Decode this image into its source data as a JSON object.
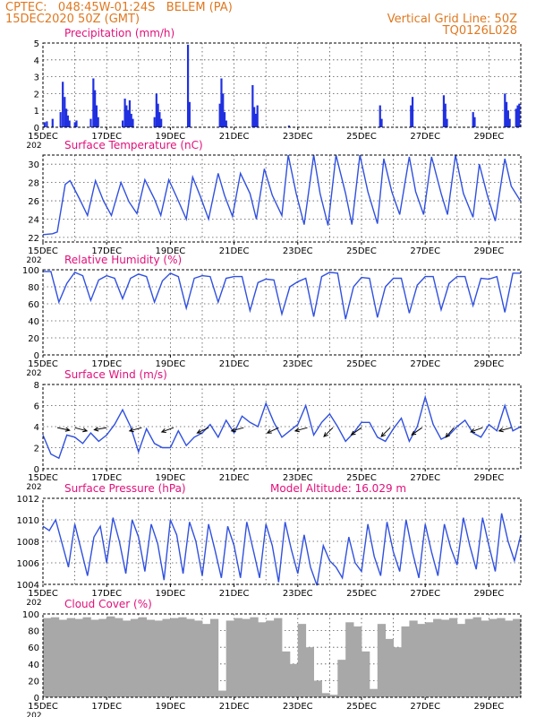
{
  "header": {
    "station": "CPTEC:   048:45W-01:24S   BELEM (PA)",
    "run": "15DEC2020 50Z (GMT)",
    "grid_note": "Vertical Grid Line: 50Z",
    "code": "TQ0126L028"
  },
  "model_altitude": "Model Altitude: 16.029  m",
  "x_axis": {
    "labels": [
      "15DEC",
      "17DEC",
      "19DEC",
      "21DEC",
      "23DEC",
      "25DEC",
      "27DEC",
      "29DEC"
    ],
    "label_days": [
      0,
      2,
      4,
      6,
      8,
      10,
      12,
      14
    ],
    "range_days": [
      0,
      15
    ],
    "year_stub": "202"
  },
  "colors": {
    "line": "#3050e0",
    "bar": "#2030e0",
    "cloud": "#a8a8a8",
    "title": "#e0107a",
    "header": "#e07820",
    "grid": "#555555"
  },
  "chart_data": [
    {
      "type": "bar",
      "title": "Precipitation (mm/h)",
      "ylim": [
        0,
        5
      ],
      "yticks": [
        "0",
        "1",
        "2",
        "3",
        "4",
        "5"
      ],
      "bars": [
        {
          "t": 0.05,
          "v": 0.3
        },
        {
          "t": 0.12,
          "v": 0.35
        },
        {
          "t": 0.3,
          "v": 0.5
        },
        {
          "t": 0.55,
          "v": 0.9
        },
        {
          "t": 0.62,
          "v": 2.7
        },
        {
          "t": 0.68,
          "v": 1.8
        },
        {
          "t": 0.73,
          "v": 1.1
        },
        {
          "t": 0.78,
          "v": 0.7
        },
        {
          "t": 0.83,
          "v": 0.4
        },
        {
          "t": 1.0,
          "v": 0.3
        },
        {
          "t": 1.05,
          "v": 0.4
        },
        {
          "t": 1.5,
          "v": 0.5
        },
        {
          "t": 1.58,
          "v": 2.9
        },
        {
          "t": 1.63,
          "v": 2.2
        },
        {
          "t": 1.68,
          "v": 1.3
        },
        {
          "t": 1.73,
          "v": 0.6
        },
        {
          "t": 2.5,
          "v": 0.4
        },
        {
          "t": 2.57,
          "v": 1.7
        },
        {
          "t": 2.62,
          "v": 1.3
        },
        {
          "t": 2.67,
          "v": 1.0
        },
        {
          "t": 2.72,
          "v": 1.6
        },
        {
          "t": 2.77,
          "v": 0.8
        },
        {
          "t": 2.82,
          "v": 0.5
        },
        {
          "t": 3.5,
          "v": 0.6
        },
        {
          "t": 3.56,
          "v": 2.0
        },
        {
          "t": 3.61,
          "v": 1.4
        },
        {
          "t": 3.66,
          "v": 0.9
        },
        {
          "t": 3.71,
          "v": 0.5
        },
        {
          "t": 4.55,
          "v": 4.9
        },
        {
          "t": 4.6,
          "v": 1.5
        },
        {
          "t": 5.55,
          "v": 1.4
        },
        {
          "t": 5.6,
          "v": 2.9
        },
        {
          "t": 5.65,
          "v": 2.0
        },
        {
          "t": 5.7,
          "v": 0.9
        },
        {
          "t": 5.75,
          "v": 0.4
        },
        {
          "t": 6.58,
          "v": 2.5
        },
        {
          "t": 6.63,
          "v": 1.2
        },
        {
          "t": 6.68,
          "v": 0.8
        },
        {
          "t": 6.73,
          "v": 1.3
        },
        {
          "t": 7.72,
          "v": 0.1
        },
        {
          "t": 10.58,
          "v": 1.3
        },
        {
          "t": 10.63,
          "v": 0.5
        },
        {
          "t": 11.55,
          "v": 1.3
        },
        {
          "t": 11.6,
          "v": 1.8
        },
        {
          "t": 12.58,
          "v": 1.9
        },
        {
          "t": 12.63,
          "v": 1.4
        },
        {
          "t": 12.68,
          "v": 0.5
        },
        {
          "t": 13.5,
          "v": 0.9
        },
        {
          "t": 13.55,
          "v": 0.6
        },
        {
          "t": 14.5,
          "v": 2.0
        },
        {
          "t": 14.55,
          "v": 1.5
        },
        {
          "t": 14.6,
          "v": 1.0
        },
        {
          "t": 14.65,
          "v": 0.5
        },
        {
          "t": 14.85,
          "v": 1.1
        },
        {
          "t": 14.9,
          "v": 1.3
        },
        {
          "t": 14.95,
          "v": 1.4
        }
      ]
    },
    {
      "type": "line",
      "title": "Surface Temperature (nC)",
      "ylim": [
        21.5,
        31
      ],
      "yticks": [
        "22",
        "24",
        "26",
        "28",
        "30"
      ],
      "x": [
        0,
        0.3,
        0.45,
        0.7,
        0.85,
        1.15,
        1.4,
        1.65,
        1.9,
        2.15,
        2.45,
        2.7,
        2.95,
        3.2,
        3.5,
        3.7,
        3.95,
        4.2,
        4.5,
        4.7,
        4.95,
        5.2,
        5.5,
        5.7,
        5.95,
        6.2,
        6.5,
        6.7,
        6.95,
        7.2,
        7.5,
        7.7,
        7.95,
        8.2,
        8.5,
        8.7,
        8.95,
        9.2,
        9.5,
        9.7,
        9.95,
        10.2,
        10.5,
        10.7,
        10.95,
        11.2,
        11.5,
        11.7,
        11.95,
        12.2,
        12.5,
        12.7,
        12.95,
        13.2,
        13.5,
        13.7,
        13.95,
        14.2,
        14.5,
        14.7,
        14.95,
        15.0
      ],
      "y": [
        22.3,
        22.4,
        22.6,
        27.8,
        28.2,
        26.2,
        24.4,
        28.2,
        26.0,
        24.4,
        28.0,
        25.9,
        24.6,
        28.3,
        26.2,
        24.4,
        28.3,
        26.4,
        24.0,
        28.6,
        26.4,
        24.0,
        29.0,
        26.6,
        24.3,
        29.0,
        26.8,
        24.0,
        29.5,
        26.6,
        24.4,
        31.0,
        26.8,
        23.4,
        31.0,
        26.8,
        23.3,
        31.0,
        26.8,
        23.4,
        31.0,
        27.0,
        23.5,
        30.6,
        27.0,
        24.5,
        30.8,
        27.0,
        24.5,
        30.8,
        26.8,
        24.5,
        31.0,
        26.8,
        24.2,
        30.0,
        26.6,
        23.8,
        30.6,
        27.6,
        26.2,
        26.0
      ]
    },
    {
      "type": "line",
      "title": "Relative Humidity (%)",
      "ylim": [
        0,
        100
      ],
      "yticks": [
        "0",
        "20",
        "40",
        "60",
        "80",
        "100"
      ],
      "x": [
        0,
        0.25,
        0.5,
        0.75,
        1.0,
        1.25,
        1.5,
        1.75,
        2.0,
        2.25,
        2.5,
        2.75,
        3.0,
        3.25,
        3.5,
        3.75,
        4.0,
        4.25,
        4.5,
        4.75,
        5.0,
        5.25,
        5.5,
        5.75,
        6.0,
        6.25,
        6.5,
        6.75,
        7.0,
        7.25,
        7.5,
        7.75,
        8.0,
        8.25,
        8.5,
        8.75,
        9.0,
        9.25,
        9.5,
        9.75,
        10.0,
        10.25,
        10.5,
        10.75,
        11.0,
        11.25,
        11.5,
        11.75,
        12.0,
        12.25,
        12.5,
        12.75,
        13.0,
        13.25,
        13.5,
        13.75,
        14.0,
        14.25,
        14.5,
        14.75,
        15.0
      ],
      "y": [
        98,
        98,
        62,
        84,
        97,
        93,
        64,
        88,
        93,
        90,
        66,
        90,
        95,
        92,
        62,
        87,
        96,
        92,
        55,
        90,
        93,
        92,
        62,
        90,
        92,
        92,
        52,
        85,
        89,
        88,
        48,
        80,
        86,
        90,
        45,
        92,
        97,
        96,
        42,
        80,
        91,
        90,
        44,
        80,
        90,
        90,
        49,
        82,
        92,
        92,
        53,
        84,
        92,
        92,
        58,
        90,
        89,
        92,
        50,
        96,
        96
      ]
    },
    {
      "type": "line",
      "title": "Surface Wind (m/s)",
      "ylim": [
        0,
        8
      ],
      "yticks": [
        "0",
        "2",
        "4",
        "6",
        "8"
      ],
      "x": [
        0,
        0.25,
        0.5,
        0.75,
        1.0,
        1.25,
        1.5,
        1.75,
        2.0,
        2.25,
        2.5,
        2.75,
        3.0,
        3.25,
        3.5,
        3.75,
        4.0,
        4.25,
        4.5,
        4.75,
        5.0,
        5.25,
        5.5,
        5.75,
        6.0,
        6.25,
        6.5,
        6.75,
        7.0,
        7.25,
        7.5,
        7.75,
        8.0,
        8.25,
        8.5,
        8.75,
        9.0,
        9.25,
        9.5,
        9.75,
        10.0,
        10.25,
        10.5,
        10.75,
        11.0,
        11.25,
        11.5,
        11.75,
        12.0,
        12.25,
        12.5,
        12.75,
        13.0,
        13.25,
        13.5,
        13.75,
        14.0,
        14.25,
        14.5,
        14.75,
        15.0
      ],
      "y": [
        3.2,
        1.4,
        1.0,
        3.2,
        3.0,
        2.4,
        3.4,
        2.6,
        3.2,
        4.2,
        5.6,
        4.0,
        1.6,
        3.8,
        2.4,
        2.0,
        2.0,
        3.6,
        2.2,
        3.0,
        3.4,
        4.2,
        3.0,
        4.6,
        3.4,
        5.0,
        4.4,
        4.0,
        6.2,
        4.4,
        3.0,
        3.6,
        4.2,
        6.0,
        3.2,
        4.4,
        5.2,
        4.0,
        2.6,
        3.4,
        4.4,
        4.4,
        3.0,
        2.6,
        3.8,
        4.8,
        2.6,
        4.0,
        6.8,
        4.2,
        2.8,
        3.2,
        4.0,
        4.6,
        3.4,
        3.0,
        4.2,
        3.6,
        6.0,
        3.6,
        4.0
      ],
      "arrows": [
        {
          "t": 0.45,
          "dir": -12
        },
        {
          "t": 1.0,
          "dir": -15
        },
        {
          "t": 2.0,
          "dir": 190
        },
        {
          "t": 3.1,
          "dir": 195
        },
        {
          "t": 4.1,
          "dir": 200
        },
        {
          "t": 5.2,
          "dir": 205
        },
        {
          "t": 6.3,
          "dir": 195
        },
        {
          "t": 7.4,
          "dir": 205
        },
        {
          "t": 8.3,
          "dir": 195
        },
        {
          "t": 9.1,
          "dir": 225
        },
        {
          "t": 10.0,
          "dir": 215
        },
        {
          "t": 10.9,
          "dir": 225
        },
        {
          "t": 11.9,
          "dir": 215
        },
        {
          "t": 12.9,
          "dir": 230
        },
        {
          "t": 13.8,
          "dir": 200
        },
        {
          "t": 14.7,
          "dir": 195
        }
      ]
    },
    {
      "type": "line",
      "title": "Surface Pressure (hPa)",
      "ylim": [
        1004,
        1012
      ],
      "yticks": [
        "1004",
        "1006",
        "1008",
        "1010",
        "1012"
      ],
      "x": [
        0,
        0.2,
        0.4,
        0.6,
        0.8,
        1.0,
        1.2,
        1.4,
        1.6,
        1.8,
        2.0,
        2.2,
        2.4,
        2.6,
        2.8,
        3.0,
        3.2,
        3.4,
        3.6,
        3.8,
        4.0,
        4.2,
        4.4,
        4.6,
        4.8,
        5.0,
        5.2,
        5.4,
        5.6,
        5.8,
        6.0,
        6.2,
        6.4,
        6.6,
        6.8,
        7.0,
        7.2,
        7.4,
        7.6,
        7.8,
        8.0,
        8.2,
        8.4,
        8.6,
        8.8,
        9.0,
        9.2,
        9.4,
        9.6,
        9.8,
        10.0,
        10.2,
        10.4,
        10.6,
        10.8,
        11.0,
        11.2,
        11.4,
        11.6,
        11.8,
        12.0,
        12.2,
        12.4,
        12.6,
        12.8,
        13.0,
        13.2,
        13.4,
        13.6,
        13.8,
        14.0,
        14.2,
        14.4,
        14.6,
        14.8,
        15.0
      ],
      "y": [
        1009.4,
        1009.0,
        1010.0,
        1007.8,
        1005.6,
        1009.6,
        1007.2,
        1004.8,
        1008.4,
        1009.4,
        1006.0,
        1010.2,
        1008.0,
        1005.0,
        1010.0,
        1008.4,
        1005.2,
        1009.6,
        1007.8,
        1004.4,
        1010.0,
        1008.6,
        1005.0,
        1009.8,
        1008.0,
        1004.8,
        1009.6,
        1007.2,
        1004.6,
        1009.4,
        1007.6,
        1004.6,
        1009.8,
        1007.2,
        1004.6,
        1009.6,
        1007.6,
        1004.2,
        1009.8,
        1007.2,
        1005.0,
        1008.6,
        1005.6,
        1003.9,
        1007.6,
        1006.2,
        1005.6,
        1004.6,
        1008.4,
        1006.0,
        1005.2,
        1009.6,
        1006.6,
        1004.8,
        1009.8,
        1007.0,
        1005.2,
        1010.0,
        1007.0,
        1004.6,
        1009.6,
        1007.0,
        1004.8,
        1009.6,
        1007.4,
        1005.8,
        1010.2,
        1007.6,
        1005.4,
        1010.2,
        1007.6,
        1005.2,
        1010.6,
        1008.0,
        1006.2,
        1008.6
      ]
    },
    {
      "type": "bar",
      "title": "Cloud Cover (%)",
      "ylim": [
        0,
        100
      ],
      "yticks": [
        "0",
        "20",
        "40",
        "60",
        "80",
        "100"
      ],
      "x": [
        0,
        0.25,
        0.5,
        0.75,
        1.0,
        1.25,
        1.5,
        1.75,
        2.0,
        2.25,
        2.5,
        2.75,
        3.0,
        3.25,
        3.5,
        3.75,
        4.0,
        4.25,
        4.5,
        4.75,
        5.0,
        5.25,
        5.5,
        5.75,
        6.0,
        6.25,
        6.5,
        6.75,
        7.0,
        7.25,
        7.5,
        7.75,
        8.0,
        8.25,
        8.5,
        8.75,
        9.0,
        9.25,
        9.5,
        9.75,
        10.0,
        10.25,
        10.5,
        10.75,
        11.0,
        11.25,
        11.5,
        11.75,
        12.0,
        12.25,
        12.5,
        12.75,
        13.0,
        13.25,
        13.5,
        13.75,
        14.0,
        14.25,
        14.5,
        14.75,
        15.0
      ],
      "values": [
        95,
        96,
        93,
        95,
        94,
        96,
        93,
        94,
        97,
        95,
        92,
        94,
        96,
        93,
        92,
        94,
        95,
        96,
        94,
        92,
        88,
        94,
        8,
        92,
        95,
        94,
        96,
        90,
        92,
        95,
        55,
        40,
        88,
        60,
        20,
        5,
        3,
        45,
        90,
        85,
        55,
        10,
        88,
        70,
        60,
        85,
        92,
        88,
        90,
        94,
        93,
        95,
        88,
        94,
        96,
        92,
        94,
        95,
        92,
        94,
        96
      ]
    }
  ]
}
